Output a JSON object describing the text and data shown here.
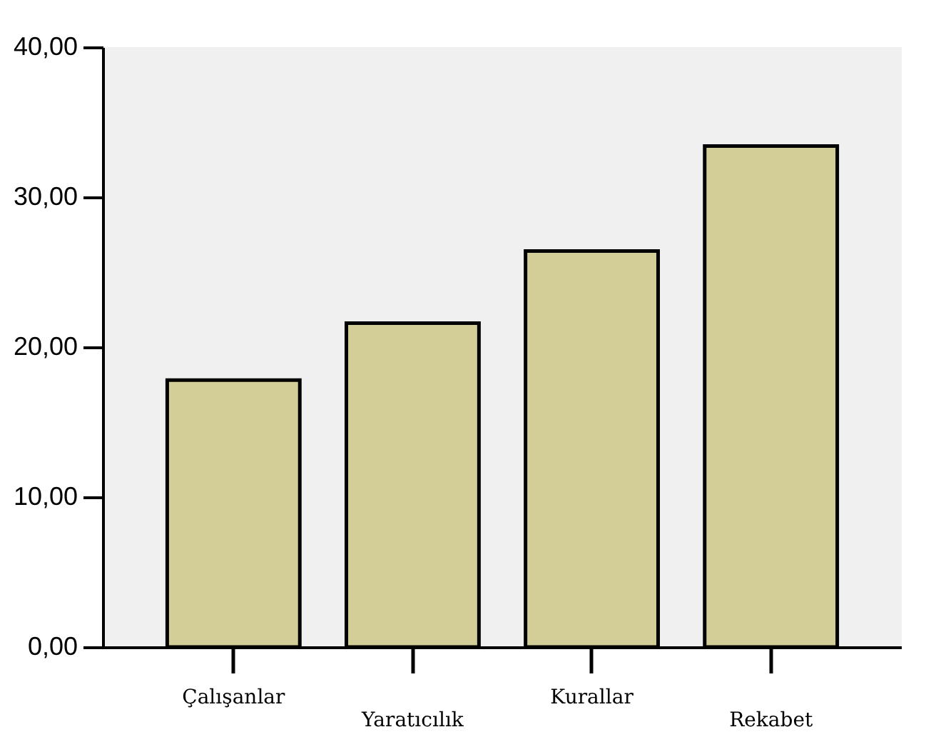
{
  "chart_data": {
    "type": "bar",
    "categories": [
      "Çalışanlar",
      "Yaratıcılık",
      "Kurallar",
      "Rekabet"
    ],
    "values": [
      17.8,
      21.6,
      26.4,
      33.4
    ],
    "color": "#d3ce97",
    "ylim": [
      0,
      40
    ],
    "yticks": [
      {
        "value": 0,
        "label": "0,00"
      },
      {
        "value": 10,
        "label": "10,00"
      },
      {
        "value": 20,
        "label": "20,00"
      },
      {
        "value": 30,
        "label": "30,00"
      },
      {
        "value": 40,
        "label": "40,00"
      }
    ],
    "grid": false
  }
}
